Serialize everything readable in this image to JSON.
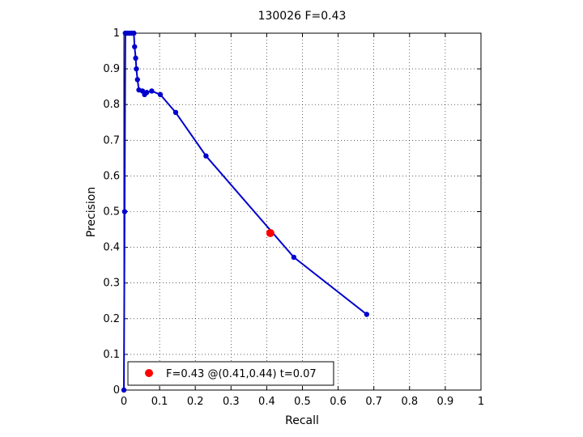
{
  "chart_data": {
    "type": "line",
    "title": "130026 F=0.43",
    "xlabel": "Recall",
    "ylabel": "Precision",
    "xlim": [
      0,
      1
    ],
    "ylim": [
      0,
      1
    ],
    "grid": true,
    "grid_style": "dotted",
    "xticks": [
      "0",
      "0.1",
      "0.2",
      "0.3",
      "0.4",
      "0.5",
      "0.6",
      "0.7",
      "0.8",
      "0.9",
      "1"
    ],
    "yticks": [
      "0",
      "0.1",
      "0.2",
      "0.3",
      "0.4",
      "0.5",
      "0.6",
      "0.7",
      "0.8",
      "0.9",
      "1"
    ],
    "series": [
      {
        "color": "#0000cc",
        "points": [
          [
            0.68,
            0.212
          ],
          [
            0.476,
            0.372
          ],
          [
            0.23,
            0.656
          ],
          [
            0.145,
            0.778
          ],
          [
            0.102,
            0.828
          ],
          [
            0.078,
            0.838
          ],
          [
            0.064,
            0.834
          ],
          [
            0.058,
            0.828
          ],
          [
            0.052,
            0.838
          ],
          [
            0.042,
            0.841
          ],
          [
            0.038,
            0.87
          ],
          [
            0.035,
            0.9
          ],
          [
            0.033,
            0.93
          ],
          [
            0.03,
            0.962
          ],
          [
            0.028,
            1.0
          ],
          [
            0.022,
            1.0
          ],
          [
            0.015,
            1.0
          ],
          [
            0.009,
            1.0
          ],
          [
            0.004,
            1.0
          ],
          [
            0.002,
            0.5
          ],
          [
            0.0,
            0.0
          ]
        ]
      }
    ],
    "highlight": {
      "x": 0.41,
      "y": 0.44,
      "color": "#ff0000"
    },
    "legend": {
      "placement": "bottom-left",
      "entries": [
        {
          "label": "F=0.43 @(0.41,0.44) t=0.07",
          "color": "#ff0000"
        }
      ]
    }
  }
}
